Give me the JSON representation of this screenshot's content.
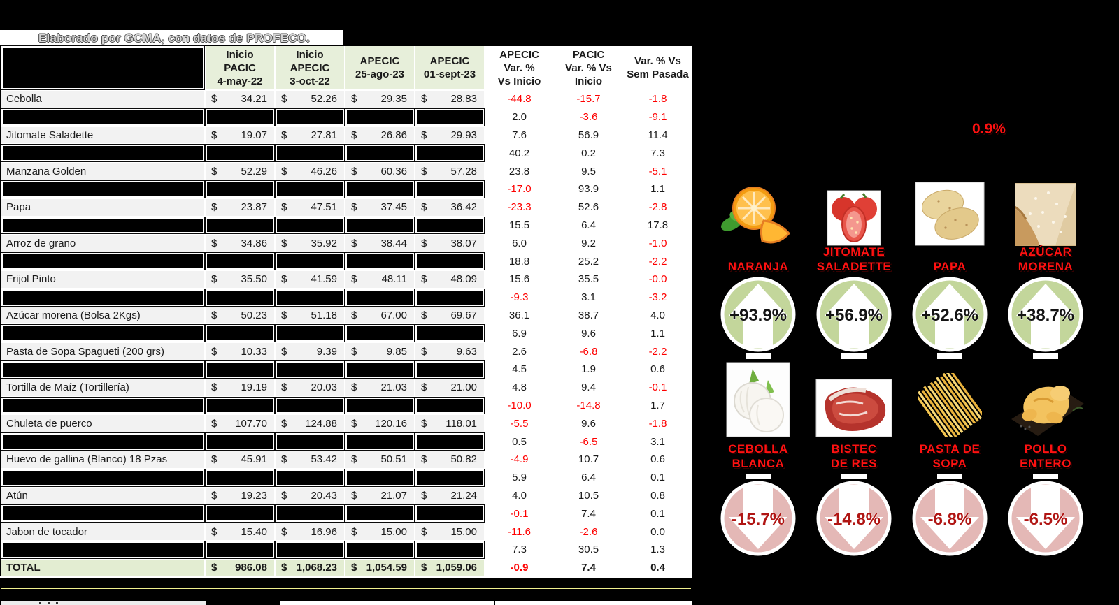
{
  "title": "Elaborado por GCMA, con datos de PROFECO.",
  "note": "0.9%",
  "theme": {
    "header_green": "#e7efda",
    "total_green": "#e3edd2",
    "row_gray": "#f2f2f2",
    "negative_red": "#fe0000",
    "circle_green": "#c3d69b",
    "circle_pink": "#e4b8b6",
    "circle_down_text": "#b01513",
    "label_red": "#fe1111",
    "accent_yellow_line": "#efef8f"
  },
  "table": {
    "currency": "$",
    "price_headers": [
      {
        "lines": [
          "Inicio",
          "PACIC",
          "4-may-22"
        ]
      },
      {
        "lines": [
          "Inicio",
          "APECIC",
          "3-oct-22"
        ]
      },
      {
        "lines": [
          "APECIC",
          "25-ago-23"
        ]
      },
      {
        "lines": [
          "APECIC",
          "01-sept-23"
        ]
      }
    ],
    "var_headers": [
      {
        "lines": [
          "APECIC",
          "Var. %",
          "Vs Inicio"
        ]
      },
      {
        "lines": [
          "PACIC",
          "Var. % Vs",
          "Inicio"
        ]
      },
      {
        "lines": [
          "Var. % Vs",
          "Sem Pasada"
        ]
      }
    ],
    "rows": [
      {
        "name": "Cebolla",
        "prices": [
          "34.21",
          "52.26",
          "29.35",
          "28.83"
        ],
        "vars": [
          "-44.8",
          "-15.7",
          "-1.8"
        ]
      },
      {
        "redacted": true,
        "vars": [
          "2.0",
          "-3.6",
          "-9.1"
        ]
      },
      {
        "name": "Jitomate Saladette",
        "prices": [
          "19.07",
          "27.81",
          "26.86",
          "29.93"
        ],
        "vars": [
          "7.6",
          "56.9",
          "11.4"
        ]
      },
      {
        "redacted": true,
        "vars": [
          "40.2",
          "0.2",
          "7.3"
        ]
      },
      {
        "name": "Manzana Golden",
        "prices": [
          "52.29",
          "46.26",
          "60.36",
          "57.28"
        ],
        "vars": [
          "23.8",
          "9.5",
          "-5.1"
        ]
      },
      {
        "redacted": true,
        "vars": [
          "-17.0",
          "93.9",
          "1.1"
        ]
      },
      {
        "name": "Papa",
        "prices": [
          "23.87",
          "47.51",
          "37.45",
          "36.42"
        ],
        "vars": [
          "-23.3",
          "52.6",
          "-2.8"
        ]
      },
      {
        "redacted": true,
        "vars": [
          "15.5",
          "6.4",
          "17.8"
        ]
      },
      {
        "name": "Arroz de grano",
        "prices": [
          "34.86",
          "35.92",
          "38.44",
          "38.07"
        ],
        "vars": [
          "6.0",
          "9.2",
          "-1.0"
        ]
      },
      {
        "redacted": true,
        "vars": [
          "18.8",
          "25.2",
          "-2.2"
        ]
      },
      {
        "name": "Frijol Pinto",
        "prices": [
          "35.50",
          "41.59",
          "48.11",
          "48.09"
        ],
        "vars": [
          "15.6",
          "35.5",
          "-0.0"
        ]
      },
      {
        "redacted": true,
        "vars": [
          "-9.3",
          "3.1",
          "-3.2"
        ]
      },
      {
        "name": "Azúcar morena (Bolsa 2Kgs)",
        "prices": [
          "50.23",
          "51.18",
          "67.00",
          "69.67"
        ],
        "vars": [
          "36.1",
          "38.7",
          "4.0"
        ]
      },
      {
        "redacted": true,
        "vars": [
          "6.9",
          "9.6",
          "1.1"
        ]
      },
      {
        "name": "Pasta de Sopa Spagueti (200 grs)",
        "prices": [
          "10.33",
          "9.39",
          "9.85",
          "9.63"
        ],
        "vars": [
          "2.6",
          "-6.8",
          "-2.2"
        ]
      },
      {
        "redacted": true,
        "vars": [
          "4.5",
          "1.9",
          "0.6"
        ]
      },
      {
        "name": "Tortilla de Maíz (Tortillería)",
        "prices": [
          "19.19",
          "20.03",
          "21.03",
          "21.00"
        ],
        "vars": [
          "4.8",
          "9.4",
          "-0.1"
        ]
      },
      {
        "redacted": true,
        "vars": [
          "-10.0",
          "-14.8",
          "1.7"
        ]
      },
      {
        "name": "Chuleta de puerco",
        "prices": [
          "107.70",
          "124.88",
          "120.16",
          "118.01"
        ],
        "vars": [
          "-5.5",
          "9.6",
          "-1.8"
        ]
      },
      {
        "redacted": true,
        "vars": [
          "0.5",
          "-6.5",
          "3.1"
        ]
      },
      {
        "name": "Huevo de gallina (Blanco) 18 Pzas",
        "prices": [
          "45.91",
          "53.42",
          "50.51",
          "50.82"
        ],
        "vars": [
          "-4.9",
          "10.7",
          "0.6"
        ]
      },
      {
        "redacted": true,
        "vars": [
          "5.9",
          "6.4",
          "0.1"
        ]
      },
      {
        "name": "Atún",
        "prices": [
          "19.23",
          "20.43",
          "21.07",
          "21.24"
        ],
        "vars": [
          "4.0",
          "10.5",
          "0.8"
        ]
      },
      {
        "redacted": true,
        "vars": [
          "-0.1",
          "7.4",
          "0.1"
        ]
      },
      {
        "name": "Jabon de tocador",
        "prices": [
          "15.40",
          "16.96",
          "15.00",
          "15.00"
        ],
        "vars": [
          "-11.6",
          "-2.6",
          "0.0"
        ]
      },
      {
        "redacted": true,
        "vars": [
          "7.3",
          "30.5",
          "1.3"
        ]
      }
    ],
    "total": {
      "label": "TOTAL",
      "prices": [
        "986.08",
        "1,068.23",
        "1,054.59",
        "1,059.06"
      ],
      "vars": [
        "-0.9",
        "7.4",
        "0.4"
      ]
    }
  },
  "panel": {
    "up": [
      {
        "label_lines": [
          "NARANJA"
        ],
        "pct": "+93.9%",
        "icon": "orange"
      },
      {
        "label_lines": [
          "JITOMATE",
          "SALADETTE"
        ],
        "pct": "+56.9%",
        "icon": "tomato"
      },
      {
        "label_lines": [
          "PAPA"
        ],
        "pct": "+52.6%",
        "icon": "potato"
      },
      {
        "label_lines": [
          "AZÚCAR",
          "MORENA"
        ],
        "pct": "+38.7%",
        "icon": "sugar"
      }
    ],
    "down": [
      {
        "label_lines": [
          "CEBOLLA",
          "BLANCA"
        ],
        "pct": "-15.7%",
        "icon": "onion"
      },
      {
        "label_lines": [
          "BISTEC",
          "DE RES"
        ],
        "pct": "-14.8%",
        "icon": "beef"
      },
      {
        "label_lines": [
          "PASTA DE",
          "SOPA"
        ],
        "pct": "-6.8%",
        "icon": "pasta"
      },
      {
        "label_lines": [
          "POLLO",
          "ENTERO"
        ],
        "pct": "-6.5%",
        "icon": "chicken"
      }
    ]
  }
}
